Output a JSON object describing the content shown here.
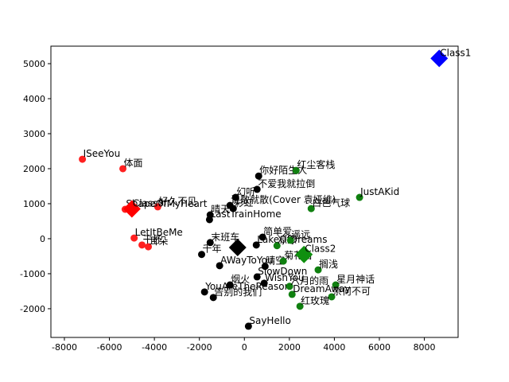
{
  "chart_data": {
    "type": "scatter",
    "xlim": [
      -8600,
      9500
    ],
    "ylim": [
      -2820,
      5500
    ],
    "xticks": [
      -8000,
      -6000,
      -4000,
      -2000,
      0,
      2000,
      4000,
      6000,
      8000
    ],
    "yticks": [
      -2000,
      -1000,
      0,
      1000,
      2000,
      3000,
      4000,
      5000
    ],
    "grid": false,
    "series": [
      {
        "color": "#ff2020",
        "marker": "circle",
        "x": [
          -7200,
          -5400,
          -5300,
          -3850,
          -4900,
          -4550,
          -4270
        ],
        "values": [
          2270,
          2000,
          840,
          910,
          20,
          -180,
          -230
        ],
        "labels": [
          "ISeeYou",
          "体面",
          "ShapeOfMyHeart",
          "好久不见",
          "LetItBeMe",
          "干杯",
          "耳朵"
        ]
      },
      {
        "color": "#000000",
        "marker": "circle",
        "x": [
          635,
          565,
          -390,
          -640,
          -495,
          -1520,
          -1550,
          810,
          -1520,
          -1900,
          -1100,
          530,
          920,
          565,
          880,
          -640,
          -1770,
          -1380,
          180
        ],
        "values": [
          1790,
          1410,
          1180,
          950,
          860,
          680,
          545,
          45,
          -110,
          -450,
          -770,
          -180,
          -790,
          -1090,
          -1270,
          -1320,
          -1520,
          -1680,
          -2500
        ],
        "labels": [
          "你好陌生人",
          "不爱我就拉倒",
          "幻听",
          "说散就散(Cover 袁娅维)",
          "彩虹",
          "晴天",
          "LastTrainHome",
          "简单爱",
          "末班车",
          "千年",
          "AWayToYou",
          "LakeOfDreams",
          "晴空",
          "SlowDown",
          "WishYou",
          "烟火",
          "YouAreTheReason",
          "告别的我们",
          "SayHello"
        ]
      },
      {
        "color": "#108010",
        "marker": "circle",
        "x": [
          2300,
          5120,
          2970,
          1450,
          2050,
          1730,
          3280,
          4060,
          3880,
          2470,
          2010,
          2120
        ],
        "values": [
          1950,
          1180,
          860,
          -200,
          -45,
          -640,
          -890,
          -1320,
          -1660,
          -1930,
          -1360,
          -1590
        ],
        "labels": [
          "红尘客栈",
          "JustAKid",
          "白色气球",
          "凉凉",
          "遥远",
          "菊花台",
          "搁浅",
          "星月神话",
          "奈何不可",
          "红玫瑰",
          "六月的雨",
          "DreamAway"
        ]
      },
      {
        "color": "centroid",
        "marker": "diamond",
        "colors": [
          "#ff0000",
          "#000000",
          "#0f8f0f",
          "#0000ff"
        ],
        "x": [
          -5000,
          -300,
          2650,
          8660
        ],
        "values": [
          850,
          -250,
          -450,
          5150
        ],
        "labels": [
          "Class0",
          null,
          "Class2",
          "Class1"
        ]
      }
    ]
  }
}
